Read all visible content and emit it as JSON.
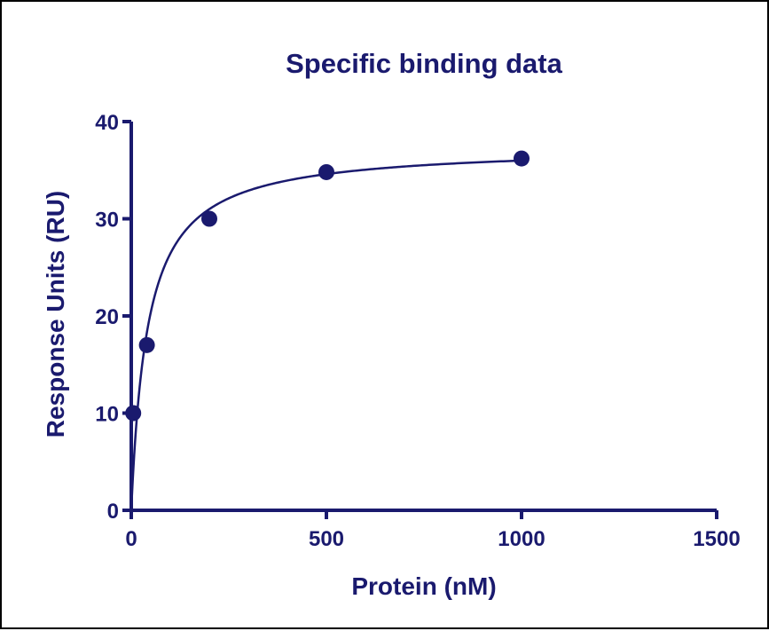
{
  "colors": {
    "ink": "#1a1a6e",
    "frame": "#000000",
    "background": "#ffffff"
  },
  "chart_data": {
    "type": "scatter",
    "title": "Specific binding data",
    "xlabel": "Protein (nM)",
    "ylabel": "Response Units (RU)",
    "xlim": [
      0,
      1500
    ],
    "ylim": [
      0,
      40
    ],
    "x_ticks": [
      0,
      500,
      1000,
      1500
    ],
    "y_ticks": [
      0,
      10,
      20,
      30,
      40
    ],
    "grid": false,
    "legend": "none",
    "series": [
      {
        "points": [
          {
            "x": 5,
            "y": 10
          },
          {
            "x": 40,
            "y": 17
          },
          {
            "x": 200,
            "y": 30
          },
          {
            "x": 500,
            "y": 34.8
          },
          {
            "x": 1000,
            "y": 36.2
          }
        ],
        "fit": {
          "model": "one-site specific binding",
          "bmax": 37.5,
          "kd": 42,
          "x_range": [
            0,
            1000
          ]
        }
      }
    ]
  }
}
